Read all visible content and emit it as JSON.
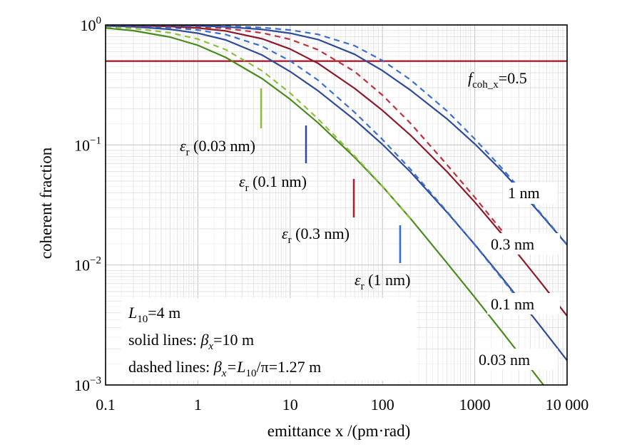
{
  "chart_data": {
    "type": "line",
    "xlabel": "emittance x /(pm·rad)",
    "ylabel": "coherent fraction",
    "x_scale": "log",
    "y_scale": "log",
    "xlim": [
      0.1,
      10000
    ],
    "ylim": [
      0.001,
      1
    ],
    "grid": true,
    "x_ticks": [
      {
        "value": 0.1,
        "label": "0.1"
      },
      {
        "value": 1,
        "label": "1"
      },
      {
        "value": 10,
        "label": "10"
      },
      {
        "value": 100,
        "label": "100"
      },
      {
        "value": 1000,
        "label": "1000"
      },
      {
        "value": 10000,
        "label": "10 000"
      }
    ],
    "y_ticks": [
      {
        "value": 1,
        "base": "10",
        "exp": "0"
      },
      {
        "value": 0.1,
        "base": "10",
        "exp": "−1"
      },
      {
        "value": 0.01,
        "base": "10",
        "exp": "−2"
      },
      {
        "value": 0.001,
        "base": "10",
        "exp": "−3"
      }
    ],
    "series": [
      {
        "lambda_nm": 0.03,
        "style": "solid",
        "color": "#4a8a1e",
        "x": [
          0.1,
          0.2,
          0.5,
          1,
          2,
          5,
          10,
          20,
          50,
          100,
          200,
          500,
          1000,
          2000,
          3000,
          5000,
          8000
        ],
        "y": [
          0.943,
          0.896,
          0.793,
          0.677,
          0.537,
          0.356,
          0.24,
          0.153,
          0.0787,
          0.0451,
          0.0245,
          0.0104,
          0.00537,
          0.00274,
          0.00184,
          0.00111,
          0.000697
        ]
      },
      {
        "lambda_nm": 0.03,
        "style": "dashed",
        "color": "#8fbf3a",
        "x": [
          0.1,
          0.2,
          0.5,
          1,
          2,
          5,
          10,
          20,
          50,
          100,
          200
        ],
        "y": [
          0.967,
          0.937,
          0.861,
          0.763,
          0.623,
          0.413,
          0.271,
          0.165,
          0.0809,
          0.0453,
          0.0243
        ]
      },
      {
        "lambda_nm": 0.1,
        "style": "solid",
        "color": "#2e4a98",
        "x": [
          0.1,
          0.2,
          0.5,
          1,
          2,
          5,
          10,
          20,
          50,
          100,
          200,
          500,
          1000,
          2000,
          5000,
          10000
        ],
        "y": [
          0.983,
          0.967,
          0.92,
          0.853,
          0.75,
          0.56,
          0.409,
          0.283,
          0.162,
          0.101,
          0.0597,
          0.0275,
          0.0148,
          0.00773,
          0.00318,
          0.0016
        ]
      },
      {
        "lambda_nm": 0.1,
        "style": "dashed",
        "color": "#3a6fd0",
        "x": [
          0.1,
          0.2,
          0.5,
          1,
          2,
          5,
          10,
          20,
          50,
          100,
          200,
          500,
          1000,
          2000,
          3000
        ],
        "y": [
          0.99,
          0.98,
          0.952,
          0.908,
          0.832,
          0.664,
          0.502,
          0.347,
          0.187,
          0.111,
          0.063,
          0.0279,
          0.0147,
          0.00757,
          0.00509
        ]
      },
      {
        "lambda_nm": 0.3,
        "style": "solid",
        "color": "#8b1a2b",
        "x": [
          0.1,
          0.2,
          0.5,
          1,
          2,
          5,
          10,
          20,
          50,
          100,
          200,
          500,
          1000,
          2000,
          3000,
          5000,
          10000
        ],
        "y": [
          0.994,
          0.988,
          0.971,
          0.943,
          0.891,
          0.766,
          0.63,
          0.479,
          0.296,
          0.194,
          0.121,
          0.0599,
          0.0334,
          0.0178,
          0.0121,
          0.00743,
          0.00376
        ]
      },
      {
        "lambda_nm": 0.3,
        "style": "dashed",
        "color": "#c0303c",
        "x": [
          0.1,
          0.2,
          0.5,
          1,
          2,
          5,
          10,
          20,
          50,
          100,
          200,
          500,
          1000,
          2000,
          3000
        ],
        "y": [
          0.997,
          0.993,
          0.983,
          0.967,
          0.937,
          0.858,
          0.759,
          0.621,
          0.409,
          0.26,
          0.152,
          0.0685,
          0.0366,
          0.019,
          0.0128
        ]
      },
      {
        "lambda_nm": 1,
        "style": "solid",
        "color": "#2e4a98",
        "x": [
          0.1,
          0.2,
          0.5,
          1,
          2,
          5,
          10,
          20,
          50,
          100,
          200,
          500,
          1000,
          2000,
          3000,
          5000,
          10000
        ],
        "y": [
          0.998,
          0.996,
          0.991,
          0.982,
          0.965,
          0.917,
          0.853,
          0.756,
          0.569,
          0.416,
          0.287,
          0.165,
          0.102,
          0.0599,
          0.0426,
          0.0274,
          0.0147
        ]
      },
      {
        "lambda_nm": 1,
        "style": "dashed",
        "color": "#3a6fd0",
        "x": [
          0.1,
          0.2,
          0.5,
          1,
          2,
          5,
          10,
          20,
          50,
          100,
          200,
          500,
          1000,
          2000,
          3000,
          5000,
          10000
        ],
        "y": [
          0.999,
          0.998,
          0.995,
          0.99,
          0.98,
          0.951,
          0.908,
          0.835,
          0.671,
          0.505,
          0.35,
          0.192,
          0.112,
          0.0632,
          0.0442,
          0.0279,
          0.0148
        ]
      }
    ],
    "reference_line": {
      "y": 0.5,
      "color": "#b01e2e"
    },
    "annotations": {
      "fcoh": {
        "main": "f",
        "sub": "coh_x",
        "rest": "=0.5"
      },
      "eps_labels": [
        {
          "eps": "ε",
          "sub": "r",
          "rest": " (0.03 nm)",
          "tick_color": "#8fbf3a"
        },
        {
          "eps": "ε",
          "sub": "r",
          "rest": " (0.1 nm)",
          "tick_color": "#2e4a98"
        },
        {
          "eps": "ε",
          "sub": "r",
          "rest": " (0.3 nm)",
          "tick_color": "#b01e2e"
        },
        {
          "eps": "ε",
          "sub": "r",
          "rest": " (1 nm)",
          "tick_color": "#2e6fd0"
        }
      ],
      "end_labels": [
        "1 nm",
        "0.3 nm",
        "0.1 nm",
        "0.03 nm"
      ],
      "legend": {
        "line1": {
          "main": "L",
          "sub": "10",
          "rest": "=4 m"
        },
        "line2": {
          "pre": "solid lines: ",
          "beta": "β",
          "sub": "x",
          "rest": "=10 m"
        },
        "line3": {
          "pre": "dashed lines: ",
          "beta": "β",
          "sub": "x",
          "mid": "=L",
          "sub2": "10",
          "rest": "/π=1.27 m"
        }
      }
    }
  }
}
